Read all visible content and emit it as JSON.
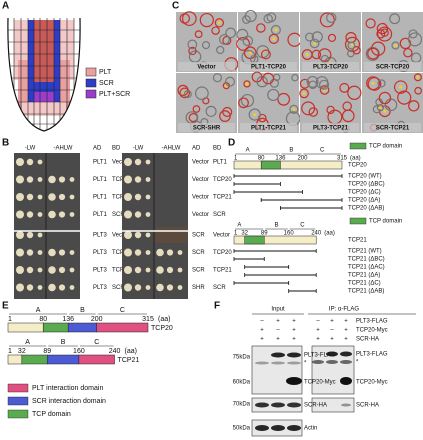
{
  "panels": {
    "a": {
      "letter": "A",
      "legend": [
        "PLT",
        "SCR",
        "PLT+SCR"
      ]
    },
    "b": {
      "letter": "B",
      "headers": [
        "-LW",
        "-AHLW",
        "AD",
        "BD"
      ],
      "left_rows": [
        [
          "PLT1",
          "Vector"
        ],
        [
          "PLT1",
          "TCP20"
        ],
        [
          "PLT1",
          "TCP21"
        ],
        [
          "PLT1",
          "SCR"
        ],
        [
          "PLT3",
          "Vector"
        ],
        [
          "PLT3",
          "TCP20"
        ],
        [
          "PLT3",
          "TCP21"
        ],
        [
          "PLT3",
          "SCR"
        ]
      ],
      "right_rows": [
        [
          "Vector",
          "PLT1"
        ],
        [
          "Vector",
          "TCP20"
        ],
        [
          "Vector",
          "TCP21"
        ],
        [
          "Vector",
          "SCR"
        ],
        [
          "SCR",
          "Vector"
        ],
        [
          "SCR",
          "TCP20"
        ],
        [
          "SCR",
          "TCP21"
        ],
        [
          "SHR",
          "SCR"
        ]
      ]
    },
    "c": {
      "letter": "C",
      "labels": [
        "Vector",
        "PLT1-TCP20",
        "PLT3-TCP20",
        "SCR-TCP20",
        "SCR-SHR",
        "PLT1-TCP21",
        "PLT3-TCP21",
        "SCR-TCP21"
      ]
    },
    "d": {
      "letter": "D",
      "proteins": [
        {
          "legend": "TCP domain",
          "name": "TCP20",
          "regions": [
            "A",
            "B",
            "C"
          ],
          "positions": [
            1,
            80,
            136,
            200,
            315
          ],
          "unit": "(aa)",
          "constructs": [
            "TCP20 (WT)",
            "TCP20 (ΔBC)",
            "TCP20 (ΔC)",
            "TCP20 (ΔA)",
            "TCP20 (ΔAB)"
          ]
        },
        {
          "legend": "TCP domain",
          "name": "TCP21",
          "regions": [
            "A",
            "B",
            "C"
          ],
          "positions": [
            1,
            32,
            89,
            160,
            240
          ],
          "unit": "(aa)",
          "constructs": [
            "TCP21 (WT)",
            "TCP21 (ΔBC)",
            "TCP21 (ΔAC)",
            "TCP21 (ΔA)",
            "TCP21 (ΔC)",
            "TCP21 (ΔAB)"
          ]
        }
      ]
    },
    "e": {
      "letter": "E",
      "proteins": [
        {
          "name": "TCP20",
          "regions": [
            "A",
            "B",
            "C"
          ],
          "positions": [
            1,
            80,
            136,
            200,
            315
          ],
          "unit": "(aa)"
        },
        {
          "name": "TCP21",
          "regions": [
            "A",
            "B",
            "C"
          ],
          "positions": [
            1,
            32,
            89,
            160,
            240
          ],
          "unit": "(aa)"
        }
      ],
      "legend": [
        "PLT interaction domain",
        "SCR interaction domain",
        "TCP domain"
      ]
    },
    "f": {
      "letter": "F",
      "row_labels": [
        "PLT3-FLAG",
        "TCP20-Myc",
        "SCR-HA"
      ],
      "groups": [
        {
          "title": "Input",
          "signs": [
            [
              "–",
              "+",
              "+"
            ],
            [
              "+",
              "–",
              "+"
            ],
            [
              "+",
              "+",
              "+"
            ]
          ]
        },
        {
          "title": "IP: α-FLAG",
          "signs": [
            [
              "–",
              "+",
              "+"
            ],
            [
              "+",
              "–",
              "+"
            ],
            [
              "+",
              "+",
              "+"
            ]
          ]
        }
      ],
      "markers": [
        "75kDa",
        "60kDa",
        "70kDa",
        "50kDa"
      ],
      "input_labels": [
        "PLT3-FLAG",
        "*",
        "TCP20-Myc",
        "SCR-HA",
        "Actin"
      ],
      "ip_labels": [
        "PLT3-FLAG",
        "*",
        "TCP20-Myc",
        "SCR-HA"
      ]
    }
  }
}
